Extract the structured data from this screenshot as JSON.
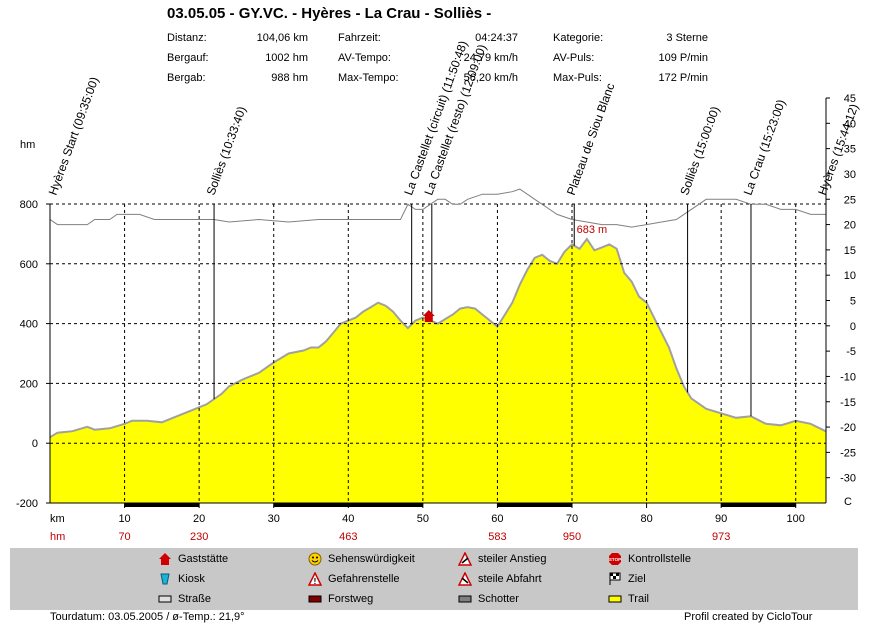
{
  "header": {
    "title": "03.05.05 - GY.VC. - Hyères - La Crau - Solliès -",
    "stats_col1": [
      {
        "label": "Distanz:",
        "value": "104,06 km"
      },
      {
        "label": "Bergauf:",
        "value": "1002 hm"
      },
      {
        "label": "Bergab:",
        "value": "988 hm"
      }
    ],
    "stats_col2": [
      {
        "label": "Fahrzeit:",
        "value": "04:24:37"
      },
      {
        "label": "AV-Tempo:",
        "value": "24,79 km/h"
      },
      {
        "label": "Max-Tempo:",
        "value": "56,20 km/h"
      }
    ],
    "stats_col3": [
      {
        "label": "Kategorie:",
        "value": "3 Sterne"
      },
      {
        "label": "AV-Puls:",
        "value": "109 P/min"
      },
      {
        "label": "Max-Puls:",
        "value": "172 P/min"
      }
    ]
  },
  "chart_data": {
    "type": "area",
    "y_left_unit": "hm",
    "x_unit": "km",
    "ylim_left": [
      -200,
      800
    ],
    "ylim_right": [
      -35,
      45
    ],
    "right_axis_last_label": "C",
    "xlim": [
      0,
      104.06
    ],
    "x_ticks": [
      10,
      20,
      30,
      40,
      50,
      60,
      70,
      80,
      90,
      100
    ],
    "y_left_ticks": [
      -200,
      0,
      200,
      400,
      600,
      800
    ],
    "y_right_ticks": [
      -30,
      -25,
      -20,
      -15,
      -10,
      -5,
      0,
      5,
      10,
      15,
      20,
      25,
      30,
      35,
      40,
      45
    ],
    "hm_row_label": "hm",
    "hm_row": [
      {
        "km": 10,
        "value": "70"
      },
      {
        "km": 20,
        "value": "230"
      },
      {
        "km": 30,
        "value": ""
      },
      {
        "km": 40,
        "value": "463"
      },
      {
        "km": 50,
        "value": ""
      },
      {
        "km": 60,
        "value": "583"
      },
      {
        "km": 70,
        "value": "950"
      },
      {
        "km": 80,
        "value": ""
      },
      {
        "km": 90,
        "value": "973"
      },
      {
        "km": 100,
        "value": ""
      }
    ],
    "peak_label": "683 m",
    "peak": {
      "km": 72.5,
      "alt": 683
    },
    "waypoints": [
      {
        "km": 0,
        "label": "Hyères Start (09:35:00)"
      },
      {
        "km": 22,
        "label": "Solliès (10:33:40)"
      },
      {
        "km": 48.5,
        "label": "La Castellet (circuit) (11:50:48)"
      },
      {
        "km": 51.2,
        "label": "La Castellet (resto) (12:09:00)"
      },
      {
        "km": 70.3,
        "label": "Plateau de Siou Blanc"
      },
      {
        "km": 85.5,
        "label": "Solliès (15:00:00)"
      },
      {
        "km": 94,
        "label": "La Crau (15:23:00)"
      },
      {
        "km": 104,
        "label": "Hyères (15:44:12)"
      }
    ],
    "altitude": {
      "x": [
        0,
        1,
        3,
        5,
        6,
        8,
        10,
        11,
        13,
        15,
        17,
        19,
        21,
        23,
        24,
        26,
        28,
        30,
        32,
        34,
        35,
        36,
        37,
        38,
        39,
        40,
        41,
        42,
        43,
        44,
        45,
        46,
        47,
        48,
        49,
        50,
        51,
        52,
        53,
        54,
        55,
        56,
        57,
        58,
        59,
        60,
        61,
        62,
        63,
        64,
        65,
        66,
        67,
        68,
        69,
        70,
        71,
        72,
        73,
        74,
        75,
        76,
        77,
        78,
        79,
        80,
        81,
        82,
        83,
        84,
        85,
        86,
        88,
        90,
        92,
        94,
        96,
        98,
        100,
        102,
        104
      ],
      "y": [
        20,
        35,
        40,
        55,
        45,
        50,
        65,
        75,
        75,
        70,
        90,
        110,
        130,
        165,
        190,
        215,
        235,
        270,
        300,
        310,
        320,
        320,
        340,
        370,
        400,
        410,
        420,
        440,
        455,
        470,
        460,
        440,
        410,
        385,
        410,
        420,
        410,
        400,
        415,
        430,
        450,
        455,
        450,
        430,
        410,
        390,
        430,
        470,
        530,
        580,
        620,
        630,
        610,
        600,
        640,
        665,
        650,
        683,
        645,
        655,
        665,
        650,
        570,
        540,
        490,
        470,
        420,
        370,
        320,
        250,
        190,
        150,
        115,
        100,
        85,
        90,
        65,
        60,
        75,
        65,
        40
      ]
    },
    "temperature": {
      "x": [
        0,
        1,
        3,
        5,
        6,
        8,
        9,
        10,
        12,
        14,
        16,
        18,
        20,
        22,
        24,
        28,
        32,
        36,
        40,
        44,
        47,
        48,
        49,
        50,
        51,
        52,
        53,
        54,
        55,
        56,
        58,
        60,
        62,
        63,
        64,
        65,
        66,
        67,
        68,
        70,
        72,
        74,
        76,
        78,
        80,
        82,
        84,
        85,
        86,
        88,
        90,
        92,
        94,
        96,
        98,
        100,
        102,
        104
      ],
      "x_note": "",
      "y": [
        21,
        20,
        20,
        20,
        21,
        21,
        22,
        22,
        22,
        21,
        21,
        21,
        21,
        21,
        20.5,
        21,
        20.5,
        21,
        21,
        21,
        21,
        24,
        23,
        23,
        24,
        25,
        25,
        24,
        24,
        25,
        26,
        26,
        26.5,
        27,
        26,
        25,
        24,
        23,
        22,
        21,
        20.5,
        20,
        20,
        19.5,
        20,
        20.5,
        21,
        22,
        23,
        25,
        25,
        25,
        24,
        24,
        23,
        23,
        22,
        22
      ]
    },
    "x_axis_stripe": [
      {
        "from": 10,
        "to": 20
      },
      {
        "from": 30,
        "to": 50
      },
      {
        "from": 60,
        "to": 70
      },
      {
        "from": 90,
        "to": 100
      }
    ],
    "colors": {
      "fill": "#ffff00",
      "outline": "#a0a0a0",
      "temperature": "#808080",
      "grid": "#000000",
      "hm_row_text": "#c00000",
      "peak_text": "#c00000",
      "stripe": "#000000",
      "legend_bg": "#c8c8c8"
    }
  },
  "legend": {
    "items": [
      {
        "icon": "restaurant-icon",
        "label": "Gaststätte"
      },
      {
        "icon": "kiosk-icon",
        "label": "Kiosk"
      },
      {
        "icon": "road-icon",
        "label": "Straße"
      },
      {
        "icon": "sight-smiley-icon",
        "label": "Sehenswürdigkeit"
      },
      {
        "icon": "danger-warning-icon",
        "label": "Gefahrenstelle"
      },
      {
        "icon": "forest-road-icon",
        "label": "Forstweg"
      },
      {
        "icon": "steep-climb-icon",
        "label": "steiler Anstieg"
      },
      {
        "icon": "steep-descent-icon",
        "label": "steile Abfahrt"
      },
      {
        "icon": "gravel-icon",
        "label": "Schotter"
      },
      {
        "icon": "stop-icon",
        "label": "Kontrollstelle"
      },
      {
        "icon": "finish-flag-icon",
        "label": "Ziel"
      },
      {
        "icon": "trail-icon",
        "label": "Trail"
      }
    ]
  },
  "footer": {
    "left": "Tourdatum: 03.05.2005  /  ø-Temp.: 21,9°",
    "right": "Profil created by CicloTour"
  }
}
